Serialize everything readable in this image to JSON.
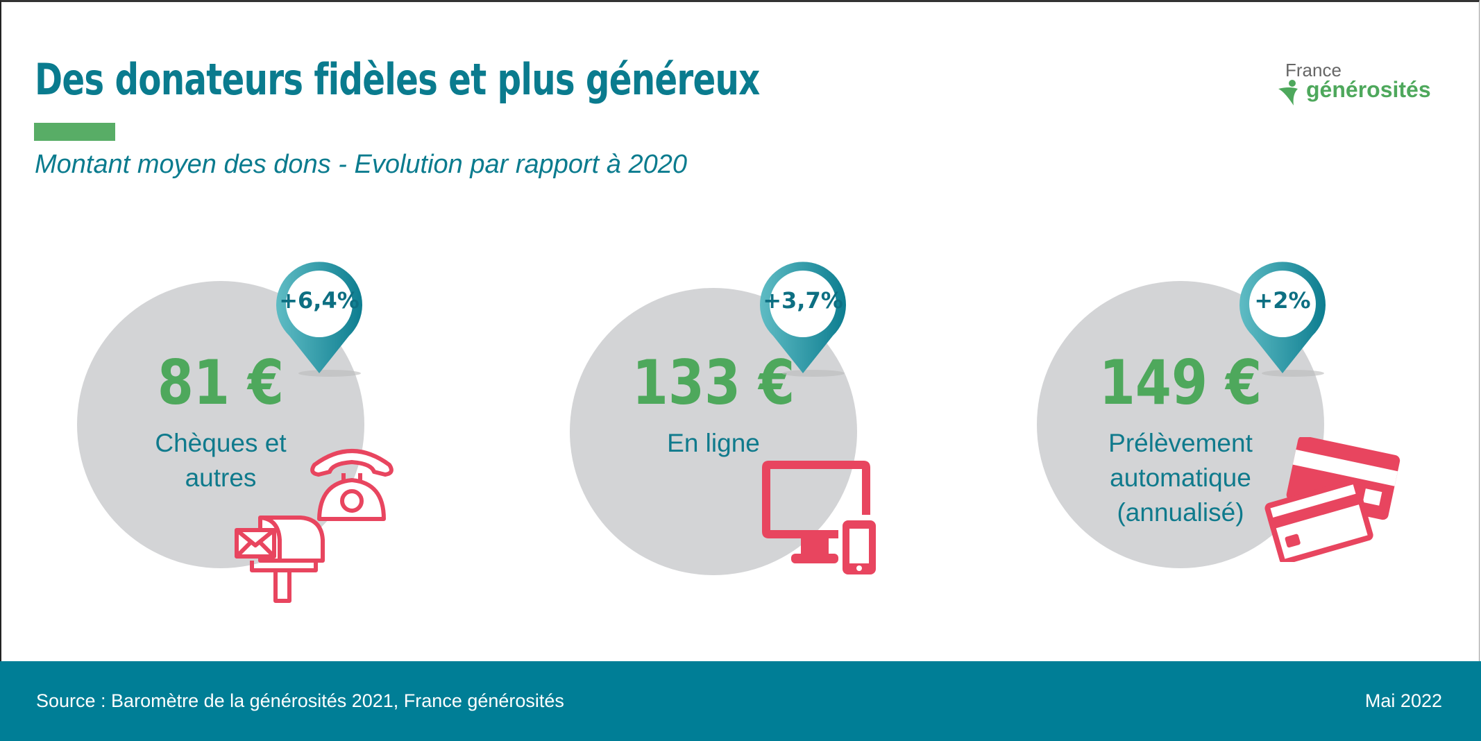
{
  "header": {
    "title": "Des donateurs fidèles et plus généreux",
    "subtitle": "Montant moyen des dons - Evolution par rapport à 2020",
    "logo": {
      "line1": "France",
      "line2": "générosités"
    }
  },
  "colors": {
    "teal": "#0a7b8e",
    "green": "#4ea85c",
    "pink": "#e8455f",
    "circle": "#d3d4d6",
    "footer": "#007e96"
  },
  "items": [
    {
      "value": "81 €",
      "change": "+6,4%",
      "label_lines": [
        "Chèques et",
        "autres"
      ],
      "icon": "telephone-and-mailbox-icon"
    },
    {
      "value": "133 €",
      "change": "+3,7%",
      "label_lines": [
        "En ligne"
      ],
      "icon": "computer-and-smartphone-icon"
    },
    {
      "value": "149 €",
      "change": "+2%",
      "label_lines": [
        "Prélèvement",
        "automatique",
        "(annualisé)"
      ],
      "icon": "credit-cards-icon"
    }
  ],
  "footer": {
    "source": "Source : Baromètre de la générosités 2021, France générosités",
    "date": "Mai 2022"
  }
}
